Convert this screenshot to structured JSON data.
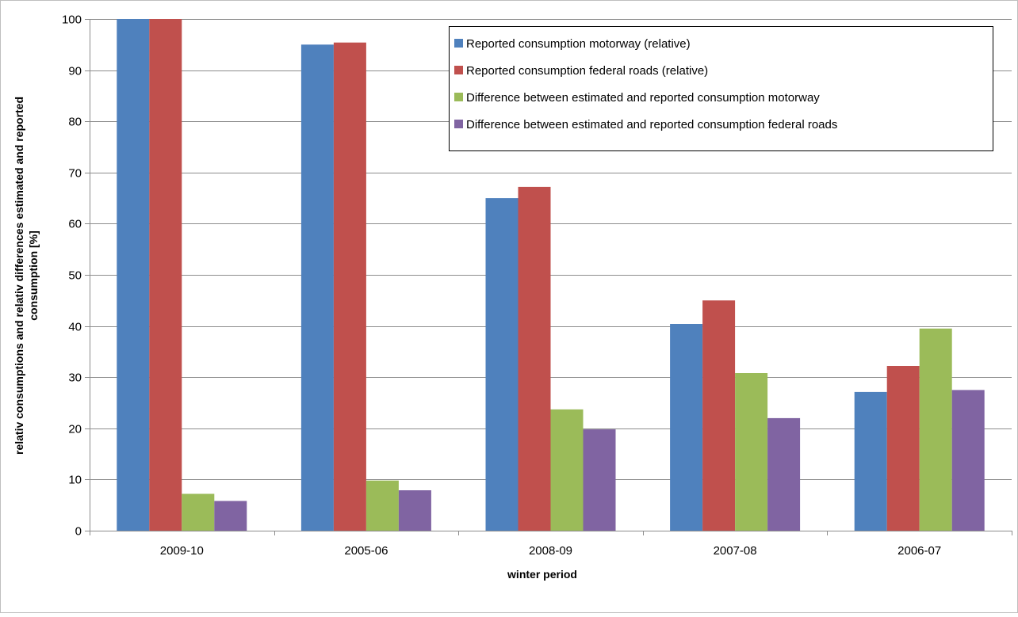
{
  "chart_data": {
    "type": "bar",
    "title": "",
    "xlabel": "winter period",
    "ylabel_lines": [
      "relativ consumptions and relativ differences  estimated and reported",
      "consumption [%]"
    ],
    "ylim": [
      0,
      100
    ],
    "yticks": [
      0,
      10,
      20,
      30,
      40,
      50,
      60,
      70,
      80,
      90,
      100
    ],
    "grid": true,
    "legend_position": "top-right",
    "categories": [
      "2009-10",
      "2005-06",
      "2008-09",
      "2007-08",
      "2006-07"
    ],
    "series": [
      {
        "name": "Reported consumption motorway (relative)",
        "color": "#4f81bd",
        "values": [
          100,
          95,
          65,
          40.4,
          27.1
        ]
      },
      {
        "name": "Reported consumption federal roads (relative)",
        "color": "#c0504d",
        "values": [
          100,
          95.4,
          67.2,
          45,
          32.2
        ]
      },
      {
        "name": "Difference between estimated and reported consumption motorway",
        "color": "#9bbb59",
        "values": [
          7.2,
          9.8,
          23.7,
          30.8,
          39.5
        ]
      },
      {
        "name": "Difference between estimated and reported consumption federal roads",
        "color": "#8064a2",
        "values": [
          5.8,
          7.9,
          19.8,
          22,
          27.5
        ]
      }
    ]
  }
}
